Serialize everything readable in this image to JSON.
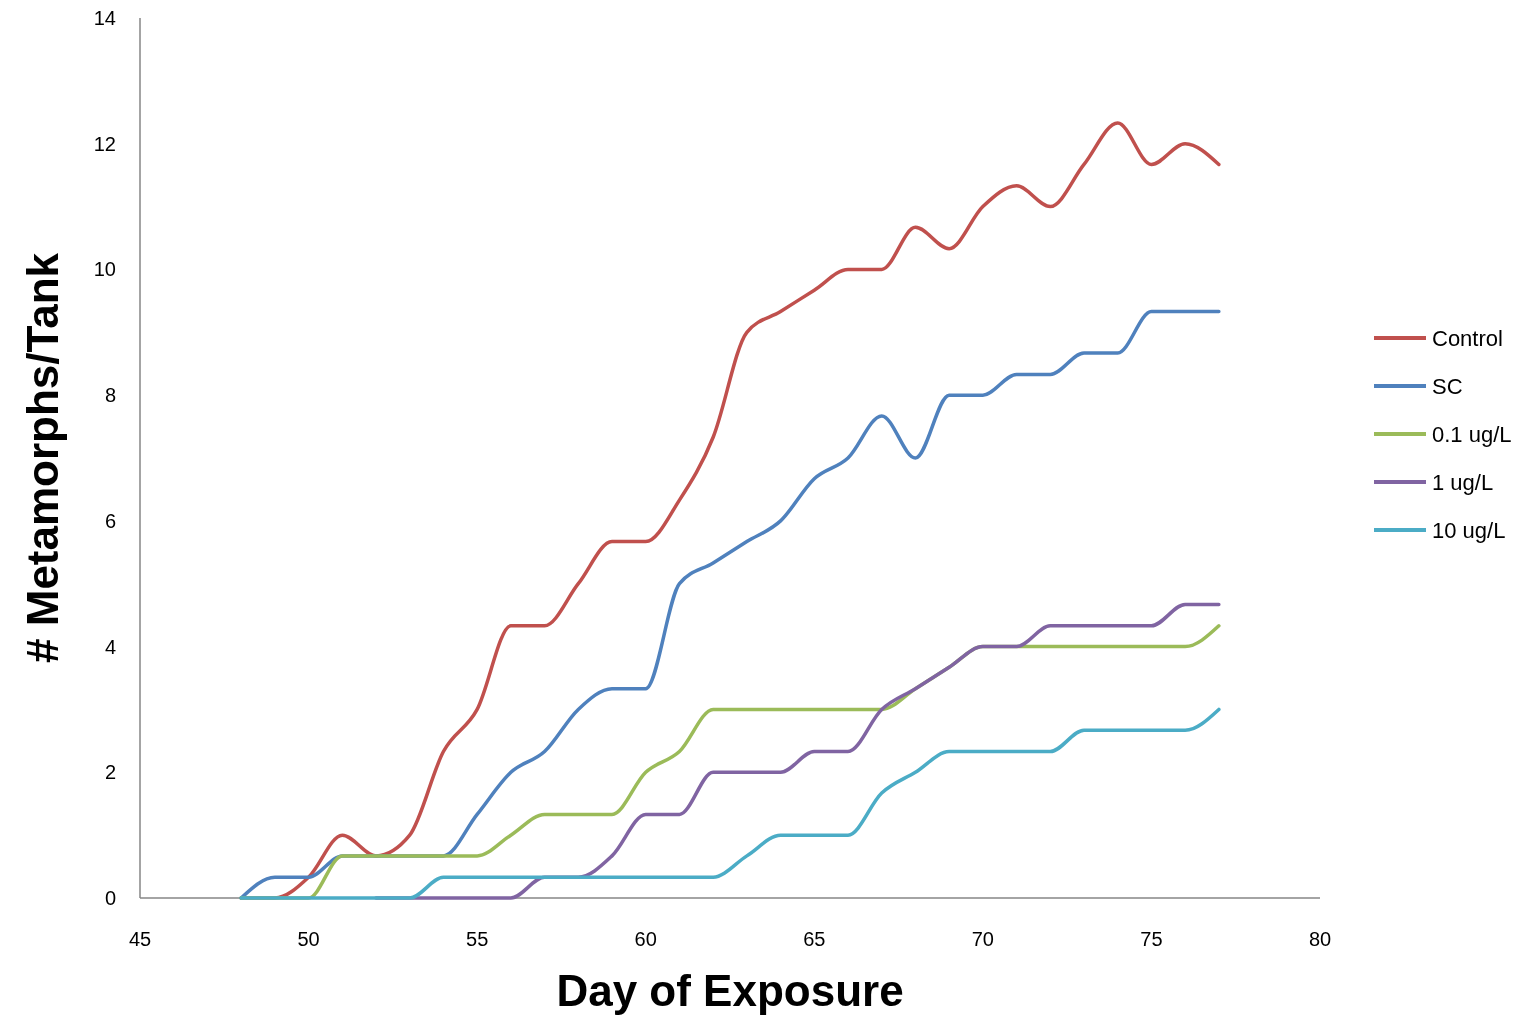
{
  "chart_data": {
    "type": "line",
    "xlabel": "Day of Exposure",
    "ylabel": "# Metamorphs/Tank",
    "x": [
      48,
      49,
      50,
      51,
      52,
      53,
      54,
      55,
      56,
      57,
      58,
      59,
      60,
      61,
      62,
      63,
      64,
      65,
      66,
      67,
      68,
      69,
      70,
      71,
      72,
      73,
      74,
      75,
      76,
      77
    ],
    "series": [
      {
        "name": "Control",
        "color": "#c0504d",
        "values": [
          0,
          0,
          0.33,
          1,
          0.67,
          1,
          2.33,
          3,
          4.33,
          4.33,
          5,
          5.67,
          5.67,
          6.33,
          7.33,
          9,
          9.33,
          9.67,
          10,
          10,
          10.67,
          10.33,
          11,
          11.33,
          11,
          11.67,
          12.33,
          11.67,
          12,
          11.67
        ]
      },
      {
        "name": "SC",
        "color": "#4f81bd",
        "values": [
          0,
          0.33,
          0.33,
          0.67,
          0.67,
          0.67,
          0.67,
          1.33,
          2,
          2.33,
          3,
          3.33,
          3.33,
          5,
          5.33,
          5.67,
          6,
          6.67,
          7,
          7.67,
          7,
          8,
          8,
          8.33,
          8.33,
          8.67,
          8.67,
          9.33,
          9.33,
          9.33
        ]
      },
      {
        "name": "0.1 ug/L",
        "color": "#9bbb59",
        "values": [
          0,
          0,
          0,
          0.67,
          0.67,
          0.67,
          0.67,
          0.67,
          1,
          1.33,
          1.33,
          1.33,
          2,
          2.33,
          3,
          3,
          3,
          3,
          3,
          3,
          3.33,
          3.67,
          4,
          4,
          4,
          4,
          4,
          4,
          4,
          4.33
        ]
      },
      {
        "name": "1 ug/L",
        "color": "#8064a2",
        "values": [
          null,
          null,
          null,
          null,
          0,
          0,
          0,
          0,
          0,
          0.33,
          0.33,
          0.67,
          1.33,
          1.33,
          2,
          2,
          2,
          2.33,
          2.33,
          3,
          3.33,
          3.67,
          4,
          4,
          4.33,
          4.33,
          4.33,
          4.33,
          4.67,
          4.67
        ]
      },
      {
        "name": "10 ug/L",
        "color": "#4bacc6",
        "values": [
          0,
          0,
          0,
          0,
          0,
          0,
          0.33,
          0.33,
          0.33,
          0.33,
          0.33,
          0.33,
          0.33,
          0.33,
          0.33,
          0.67,
          1,
          1,
          1,
          1.67,
          2,
          2.33,
          2.33,
          2.33,
          2.33,
          2.67,
          2.67,
          2.67,
          2.67,
          3
        ]
      }
    ],
    "xlim": [
      45,
      80
    ],
    "xticks": [
      45,
      50,
      55,
      60,
      65,
      70,
      75,
      80
    ],
    "ylim": [
      0,
      14
    ],
    "yticks": [
      0,
      2,
      4,
      6,
      8,
      10,
      12,
      14
    ],
    "grid": false,
    "legend": "right",
    "marker": "none",
    "line_style": "solid"
  }
}
